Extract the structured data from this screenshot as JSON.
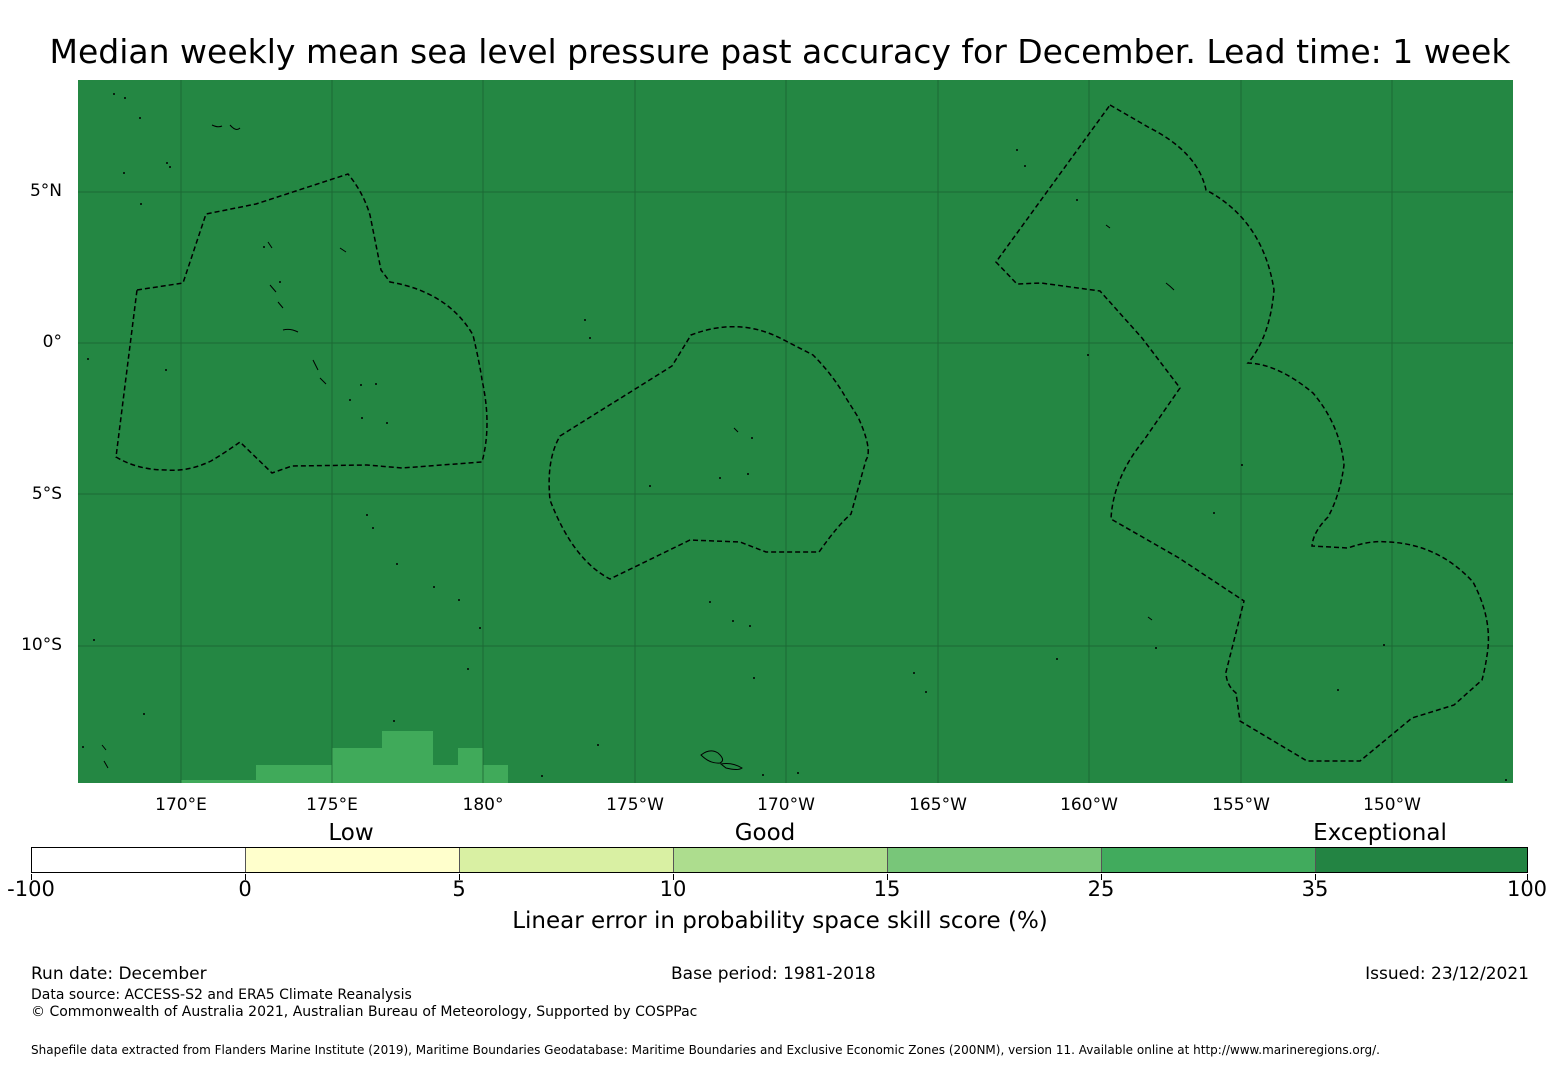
{
  "title": "Median weekly mean sea level pressure past accuracy for December. Lead time: 1 week",
  "map": {
    "background_color": "#248743",
    "patch_color": "#40aa5a",
    "lat_labels": [
      "5°N",
      "0°",
      "5°S",
      "10°S"
    ],
    "lon_labels": [
      "170°E",
      "175°E",
      "180°",
      "175°W",
      "170°W",
      "165°W",
      "160°W",
      "155°W",
      "150°W"
    ]
  },
  "legend": {
    "categories": [
      "Low",
      "Good",
      "Exceptional"
    ],
    "tick_labels": [
      "-100",
      "0",
      "5",
      "10",
      "15",
      "25",
      "35",
      "100"
    ],
    "colors": [
      "#ffffff",
      "#ffffcc",
      "#d9f0a3",
      "#addd8e",
      "#78c679",
      "#41ab5d",
      "#238443"
    ],
    "title": "Linear error in probability space skill score (%)"
  },
  "footer": {
    "run_date": "Run date: December",
    "base_period": "Base period: 1981-2018",
    "issued": "Issued: 23/12/2021",
    "data_source": "Data source: ACCESS-S2 and ERA5 Climate Reanalysis",
    "copyright": "© Commonwealth of Australia 2021, Australian Bureau of Meteorology, Supported by COSPPac",
    "shapefile": "Shapefile data extracted from Flanders Marine Institute (2019), Maritime Boundaries Geodatabase: Maritime Boundaries and Exclusive Economic Zones (200NM), version 11. Available online at http://www.marineregions.org/."
  }
}
